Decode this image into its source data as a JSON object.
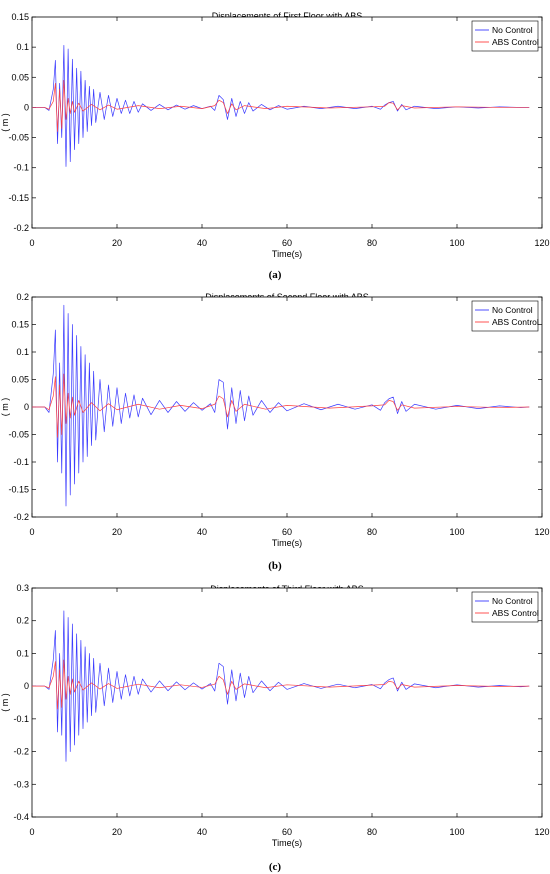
{
  "chart_data": [
    {
      "type": "line",
      "title": "Displacements of First Floor with ABS",
      "xlabel": "Time(s)",
      "ylabel": "( m )",
      "caption": "(a)",
      "xlim": [
        0,
        120
      ],
      "ylim": [
        -0.2,
        0.15
      ],
      "xticks": [
        0,
        20,
        40,
        60,
        80,
        100,
        120
      ],
      "yticks": [
        0.15,
        0.1,
        0.05,
        0,
        -0.05,
        -0.1,
        -0.15,
        -0.2
      ],
      "ytick_labels": [
        "0.15",
        "0.1",
        "0.05",
        "0",
        "-0.05",
        "-0.1",
        "-0.15",
        "-0.2"
      ],
      "legend": "top-right",
      "grid": false,
      "series": [
        {
          "name": "No Control",
          "color": "#3a3aff",
          "x": [
            0,
            3,
            4,
            5,
            5.5,
            6,
            6.5,
            7,
            7.5,
            8,
            8.5,
            9,
            9.5,
            10,
            10.5,
            11,
            11.5,
            12,
            12.5,
            13,
            13.5,
            14,
            14.5,
            15,
            16,
            17,
            18,
            19,
            20,
            21,
            22,
            23,
            24,
            25,
            26,
            28,
            30,
            32,
            34,
            36,
            38,
            40,
            42,
            43,
            44,
            45,
            46,
            47,
            48,
            49,
            50,
            51,
            52,
            54,
            56,
            58,
            60,
            64,
            68,
            72,
            76,
            80,
            82,
            83,
            84,
            85,
            86,
            87,
            88,
            90,
            95,
            100,
            105,
            110,
            115,
            117
          ],
          "y": [
            0,
            0,
            -0.005,
            0.03,
            0.078,
            -0.06,
            0.04,
            -0.05,
            0.103,
            -0.098,
            0.097,
            -0.09,
            0.08,
            -0.07,
            0.065,
            -0.06,
            0.06,
            -0.05,
            0.045,
            -0.04,
            0.035,
            -0.03,
            0.03,
            -0.025,
            0.025,
            -0.02,
            0.02,
            -0.015,
            0.015,
            -0.01,
            0.012,
            -0.01,
            0.01,
            -0.008,
            0.006,
            -0.005,
            0.005,
            -0.004,
            0.004,
            -0.003,
            0.003,
            -0.002,
            0.002,
            -0.005,
            0.02,
            0.013,
            -0.02,
            0.015,
            -0.015,
            0.01,
            -0.01,
            0.008,
            -0.006,
            0.005,
            -0.004,
            0.003,
            -0.003,
            0.002,
            -0.002,
            0.002,
            -0.002,
            0.002,
            -0.003,
            0.004,
            0.008,
            0.01,
            -0.006,
            0.005,
            -0.004,
            0.002,
            -0.002,
            0.001,
            -0.001,
            0.001,
            0,
            0
          ]
        },
        {
          "name": "ABS Control",
          "color": "#ff4040",
          "x": [
            0,
            3,
            4,
            5,
            5.5,
            6,
            6.5,
            7,
            7.5,
            8,
            8.5,
            9,
            9.5,
            10,
            11,
            12,
            14,
            16,
            18,
            20,
            25,
            30,
            35,
            40,
            43,
            44,
            45,
            46,
            47,
            48,
            50,
            55,
            60,
            70,
            80,
            83,
            84,
            85,
            86,
            87,
            90,
            100,
            110,
            117
          ],
          "y": [
            0,
            0,
            -0.003,
            0.01,
            0.04,
            -0.04,
            0.03,
            -0.035,
            0.045,
            -0.02,
            0.015,
            -0.01,
            0.01,
            -0.008,
            0.007,
            -0.006,
            0.005,
            -0.004,
            0.004,
            -0.003,
            0.003,
            -0.002,
            0.002,
            -0.002,
            0.003,
            0.012,
            0.008,
            -0.01,
            0.006,
            -0.004,
            0.003,
            -0.002,
            0.002,
            -0.001,
            0.001,
            0.002,
            0.008,
            0.007,
            -0.004,
            0.003,
            -0.001,
            0.001,
            0,
            0
          ]
        }
      ]
    },
    {
      "type": "line",
      "title": "Displacements of Second Floor with ABS",
      "xlabel": "Time(s)",
      "ylabel": "( m )",
      "caption": "(b)",
      "xlim": [
        0,
        120
      ],
      "ylim": [
        -0.2,
        0.2
      ],
      "xticks": [
        0,
        20,
        40,
        60,
        80,
        100,
        120
      ],
      "yticks": [
        0.2,
        0.15,
        0.1,
        0.05,
        0,
        -0.05,
        -0.1,
        -0.15,
        -0.2
      ],
      "ytick_labels": [
        "0.2",
        "0.15",
        "0.1",
        "0.05",
        "0",
        "-0.05",
        "-0.1",
        "-0.15",
        "-0.2"
      ],
      "legend": "top-right",
      "grid": false,
      "series": [
        {
          "name": "No Control",
          "color": "#3a3aff",
          "x": [
            0,
            3,
            4,
            5,
            5.5,
            6,
            6.5,
            7,
            7.5,
            8,
            8.5,
            9,
            9.5,
            10,
            10.5,
            11,
            11.5,
            12,
            12.5,
            13,
            13.5,
            14,
            14.5,
            15,
            16,
            17,
            18,
            19,
            20,
            21,
            22,
            23,
            24,
            25,
            26,
            28,
            30,
            32,
            34,
            36,
            38,
            40,
            42,
            43,
            44,
            45,
            46,
            47,
            48,
            49,
            50,
            51,
            52,
            54,
            56,
            58,
            60,
            64,
            68,
            72,
            76,
            80,
            82,
            83,
            84,
            85,
            86,
            87,
            88,
            90,
            95,
            100,
            105,
            110,
            115,
            117
          ],
          "y": [
            0,
            0,
            -0.01,
            0.06,
            0.14,
            -0.1,
            0.08,
            -0.12,
            0.185,
            -0.18,
            0.17,
            -0.16,
            0.15,
            -0.14,
            0.13,
            -0.12,
            0.11,
            -0.1,
            0.095,
            -0.09,
            0.08,
            -0.07,
            0.065,
            -0.06,
            0.05,
            -0.045,
            0.04,
            -0.035,
            0.035,
            -0.03,
            0.025,
            -0.02,
            0.022,
            -0.018,
            0.016,
            -0.014,
            0.012,
            -0.01,
            0.01,
            -0.008,
            0.008,
            -0.006,
            0.006,
            -0.01,
            0.05,
            0.045,
            -0.04,
            0.035,
            -0.03,
            0.03,
            -0.025,
            0.02,
            -0.015,
            0.012,
            -0.01,
            0.008,
            -0.007,
            0.006,
            -0.005,
            0.005,
            -0.004,
            0.004,
            -0.006,
            0.008,
            0.015,
            0.018,
            -0.012,
            0.01,
            -0.008,
            0.005,
            -0.004,
            0.003,
            -0.003,
            0.002,
            -0.001,
            0
          ]
        },
        {
          "name": "ABS Control",
          "color": "#ff4040",
          "x": [
            0,
            3,
            4,
            5,
            5.5,
            6,
            6.5,
            7,
            7.5,
            8,
            8.5,
            9,
            9.5,
            10,
            11,
            12,
            14,
            16,
            18,
            20,
            25,
            30,
            35,
            40,
            43,
            44,
            45,
            46,
            47,
            48,
            50,
            55,
            60,
            70,
            80,
            83,
            84,
            85,
            86,
            87,
            90,
            100,
            110,
            117
          ],
          "y": [
            0,
            0,
            -0.005,
            0.02,
            0.055,
            -0.055,
            0.04,
            -0.05,
            0.06,
            -0.03,
            0.025,
            -0.02,
            0.018,
            -0.015,
            0.012,
            -0.01,
            0.008,
            -0.007,
            0.006,
            -0.005,
            0.005,
            -0.004,
            0.003,
            -0.003,
            0.005,
            0.02,
            0.015,
            -0.018,
            0.012,
            -0.008,
            0.005,
            -0.004,
            0.003,
            -0.002,
            0.002,
            0.004,
            0.012,
            0.01,
            -0.006,
            0.004,
            -0.002,
            0.001,
            -0.001,
            0
          ]
        }
      ]
    },
    {
      "type": "line",
      "title": "Displacements of Third Floor with ABS",
      "xlabel": "Time(s)",
      "ylabel": "( m )",
      "caption": "(c)",
      "xlim": [
        0,
        120
      ],
      "ylim": [
        -0.4,
        0.3
      ],
      "xticks": [
        0,
        20,
        40,
        60,
        80,
        100,
        120
      ],
      "yticks": [
        0.3,
        0.2,
        0.1,
        0,
        -0.1,
        -0.2,
        -0.3,
        -0.4
      ],
      "ytick_labels": [
        "0.3",
        "0.2",
        "0.1",
        "0",
        "-0.1",
        "-0.2",
        "-0.3",
        "-0.4"
      ],
      "legend": "top-right",
      "grid": false,
      "series": [
        {
          "name": "No Control",
          "color": "#3a3aff",
          "x": [
            0,
            3,
            4,
            5,
            5.5,
            6,
            6.5,
            7,
            7.5,
            8,
            8.5,
            9,
            9.5,
            10,
            10.5,
            11,
            11.5,
            12,
            12.5,
            13,
            13.5,
            14,
            14.5,
            15,
            16,
            17,
            18,
            19,
            20,
            21,
            22,
            23,
            24,
            25,
            26,
            28,
            30,
            32,
            34,
            36,
            38,
            40,
            42,
            43,
            44,
            45,
            46,
            47,
            48,
            49,
            50,
            51,
            52,
            54,
            56,
            58,
            60,
            64,
            68,
            72,
            76,
            80,
            82,
            83,
            84,
            85,
            86,
            87,
            88,
            90,
            95,
            100,
            105,
            110,
            115,
            117
          ],
          "y": [
            0,
            0,
            -0.01,
            0.08,
            0.17,
            -0.14,
            0.1,
            -0.15,
            0.23,
            -0.23,
            0.21,
            -0.2,
            0.19,
            -0.18,
            0.16,
            -0.15,
            0.14,
            -0.13,
            0.12,
            -0.11,
            0.1,
            -0.09,
            0.085,
            -0.08,
            0.07,
            -0.06,
            0.055,
            -0.05,
            0.045,
            -0.04,
            0.035,
            -0.03,
            0.03,
            -0.025,
            0.022,
            -0.018,
            0.016,
            -0.014,
            0.013,
            -0.011,
            0.01,
            -0.009,
            0.008,
            -0.015,
            0.07,
            0.06,
            -0.055,
            0.05,
            -0.045,
            0.04,
            -0.035,
            0.03,
            -0.02,
            0.016,
            -0.014,
            0.012,
            -0.01,
            0.008,
            -0.007,
            0.006,
            -0.005,
            0.005,
            -0.008,
            0.01,
            0.02,
            0.025,
            -0.015,
            0.012,
            -0.01,
            0.007,
            -0.005,
            0.004,
            -0.003,
            0.002,
            -0.002,
            0
          ]
        },
        {
          "name": "ABS Control",
          "color": "#ff4040",
          "x": [
            0,
            3,
            4,
            5,
            5.5,
            6,
            6.5,
            7,
            7.5,
            8,
            8.5,
            9,
            9.5,
            10,
            11,
            12,
            14,
            16,
            18,
            20,
            25,
            30,
            35,
            40,
            43,
            44,
            45,
            46,
            47,
            48,
            50,
            55,
            60,
            70,
            80,
            83,
            84,
            85,
            86,
            87,
            90,
            100,
            110,
            117
          ],
          "y": [
            0,
            0,
            -0.005,
            0.03,
            0.075,
            -0.07,
            0.05,
            -0.065,
            0.08,
            -0.04,
            0.03,
            -0.025,
            0.022,
            -0.018,
            0.015,
            -0.012,
            0.01,
            -0.009,
            0.008,
            -0.007,
            0.006,
            -0.005,
            0.004,
            -0.004,
            0.006,
            0.03,
            0.02,
            -0.025,
            0.015,
            -0.01,
            0.007,
            -0.005,
            0.004,
            -0.003,
            0.003,
            0.005,
            0.015,
            0.012,
            -0.008,
            0.005,
            -0.003,
            0.002,
            -0.001,
            0
          ]
        }
      ]
    }
  ]
}
